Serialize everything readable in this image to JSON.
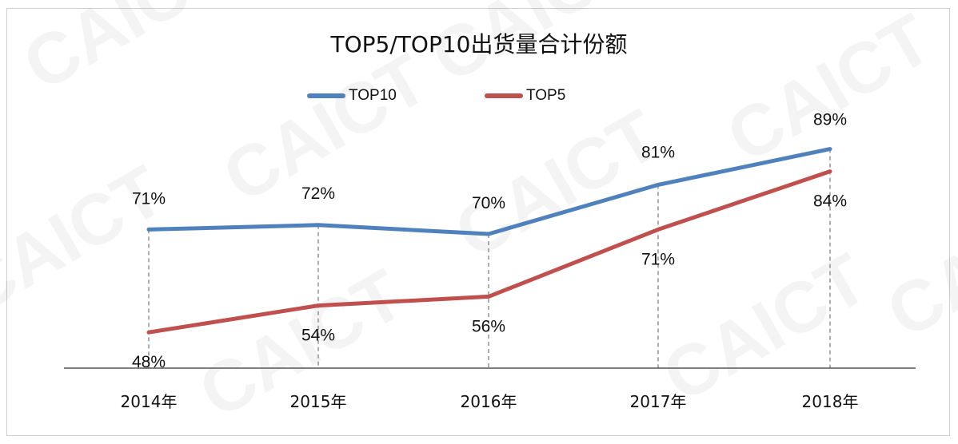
{
  "watermark": "CAICT",
  "chart_data": {
    "type": "line",
    "title": "TOP5/TOP10出货量合计份额",
    "categories": [
      "2014年",
      "2015年",
      "2016年",
      "2017年",
      "2018年"
    ],
    "series": [
      {
        "name": "TOP10",
        "color": "#4f81bd",
        "values": [
          71,
          72,
          70,
          81,
          89
        ],
        "labels": [
          "71%",
          "72%",
          "70%",
          "81%",
          "89%"
        ]
      },
      {
        "name": "TOP5",
        "color": "#c0504d",
        "values": [
          48,
          54,
          56,
          71,
          84
        ],
        "labels": [
          "48%",
          "54%",
          "56%",
          "71%",
          "84%"
        ]
      }
    ],
    "legend_position": "top-center",
    "drop_lines": true,
    "grid": false
  }
}
